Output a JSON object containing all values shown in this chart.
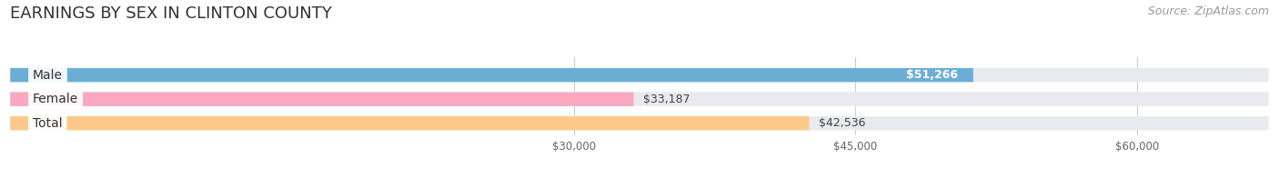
{
  "title": "EARNINGS BY SEX IN CLINTON COUNTY",
  "source": "Source: ZipAtlas.com",
  "categories": [
    "Male",
    "Female",
    "Total"
  ],
  "values": [
    51266,
    33187,
    42536
  ],
  "bar_colors": [
    "#6aaed6",
    "#f9a8c0",
    "#fdc98a"
  ],
  "bar_bg_color": "#e8eaf0",
  "label_colors": [
    "#6aaed6",
    "#f4829e",
    "#fbb55a"
  ],
  "value_labels": [
    "$51,266",
    "$33,187",
    "$42,536"
  ],
  "value_inside": [
    true,
    false,
    false
  ],
  "xmin": 0,
  "xmax": 67000,
  "tick_values": [
    30000,
    45000,
    60000
  ],
  "tick_labels": [
    "$30,000",
    "$45,000",
    "$60,000"
  ],
  "title_fontsize": 13,
  "source_fontsize": 9,
  "label_fontsize": 10,
  "value_fontsize": 9,
  "bg_color": "#ffffff",
  "bar_bg": "#e8eaf0"
}
